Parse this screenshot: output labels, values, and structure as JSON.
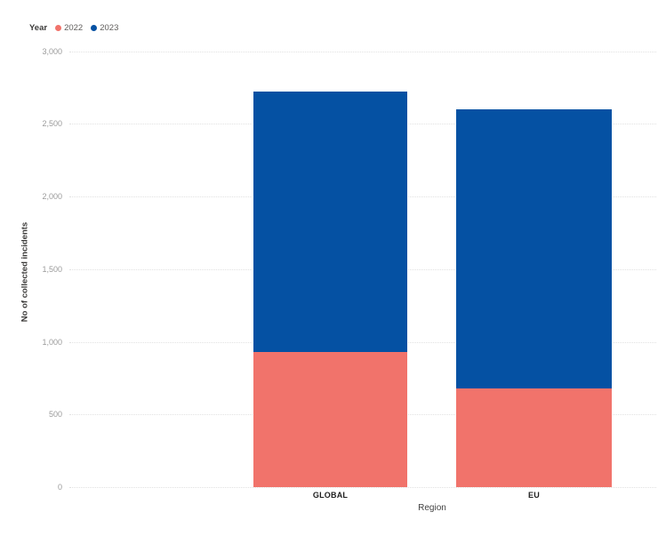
{
  "legend": {
    "title": "Year",
    "items": [
      {
        "label": "2022",
        "color": "#f1736b"
      },
      {
        "label": "2023",
        "color": "#0551a3"
      }
    ]
  },
  "y_axis": {
    "title": "No of collected incidents",
    "ticks": [
      "3,000",
      "2,500",
      "2,000",
      "1,500",
      "1,000",
      "500",
      "0"
    ]
  },
  "x_axis": {
    "title": "Region"
  },
  "chart_data": {
    "type": "bar",
    "subtype": "stacked-vertical",
    "categories": [
      "GLOBAL",
      "EU"
    ],
    "series": [
      {
        "name": "2022",
        "color": "#f1736b",
        "values": [
          930,
          680
        ]
      },
      {
        "name": "2023",
        "color": "#0551a3",
        "values": [
          1790,
          1920
        ]
      }
    ],
    "title": "",
    "xlabel": "Region",
    "ylabel": "No of collected incidents",
    "ylim": [
      0,
      3000
    ],
    "ytick_values": [
      3000,
      2500,
      2000,
      1500,
      1000,
      500,
      0
    ],
    "grid": true,
    "gridline_style": "dotted",
    "legend_position": "top-left",
    "background": "#ffffff"
  }
}
